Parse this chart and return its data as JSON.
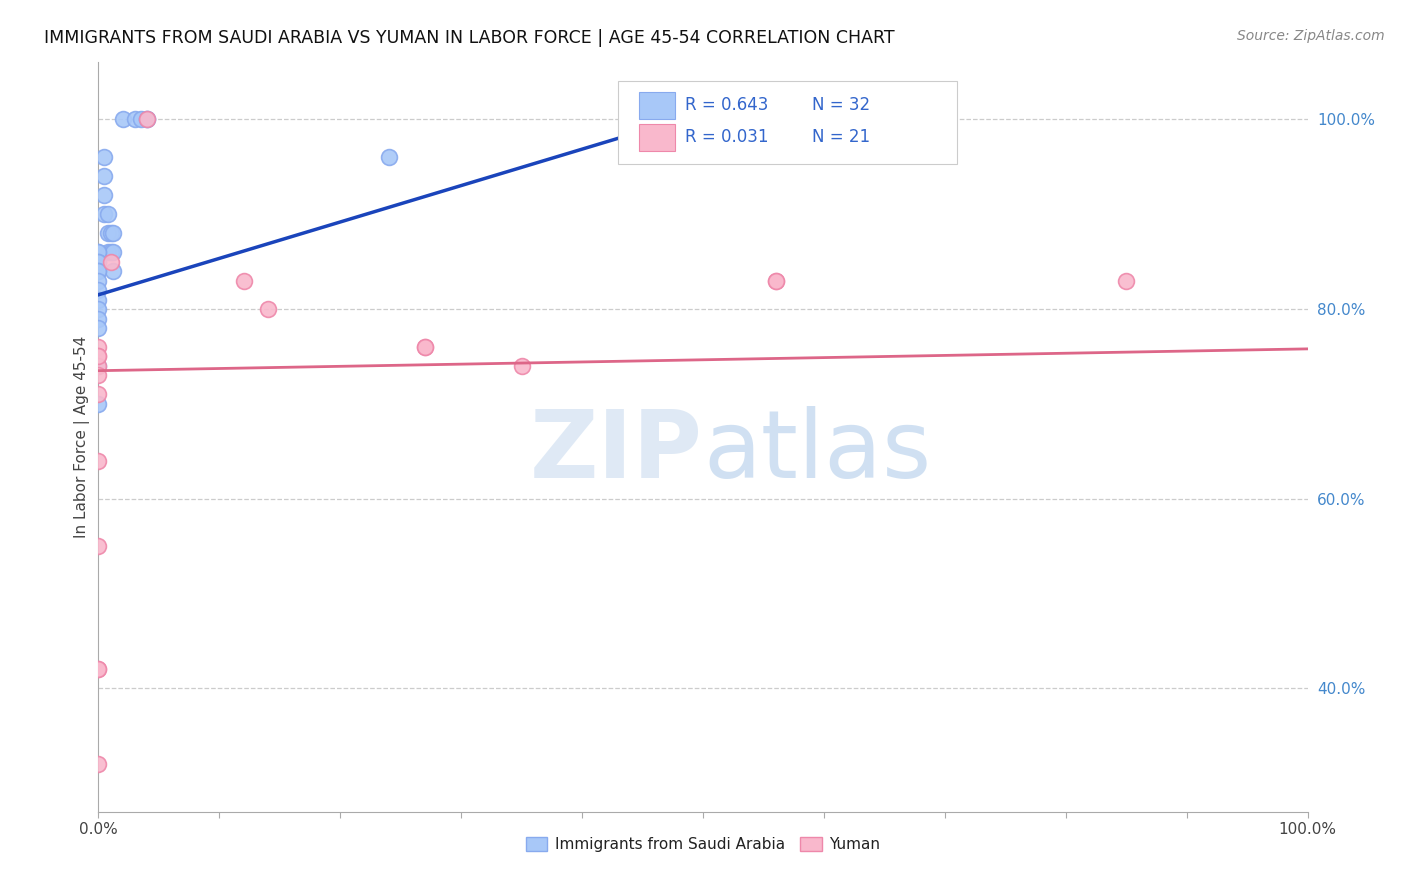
{
  "title": "IMMIGRANTS FROM SAUDI ARABIA VS YUMAN IN LABOR FORCE | AGE 45-54 CORRELATION CHART",
  "source": "Source: ZipAtlas.com",
  "ylabel": "In Labor Force | Age 45-54",
  "xlim": [
    0.0,
    1.0
  ],
  "ylim": [
    0.27,
    1.06
  ],
  "y_ticks_right": [
    0.4,
    0.6,
    0.8,
    1.0
  ],
  "y_tick_labels_right": [
    "40.0%",
    "60.0%",
    "80.0%",
    "100.0%"
  ],
  "r_blue": 0.643,
  "n_blue": 32,
  "r_pink": 0.031,
  "n_pink": 21,
  "blue_color": "#a8c8f8",
  "pink_color": "#f9b8cc",
  "blue_edge_color": "#88aaee",
  "pink_edge_color": "#ee88aa",
  "blue_line_color": "#1a44bb",
  "pink_line_color": "#dd6688",
  "legend_text_color": "#3366cc",
  "watermark_zip_color": "#c8dff5",
  "watermark_atlas_color": "#c8dff5",
  "bg_color": "#ffffff",
  "grid_color": "#cccccc",
  "blue_scatter_x": [
    0.02,
    0.03,
    0.035,
    0.04,
    0.04,
    0.005,
    0.005,
    0.005,
    0.005,
    0.008,
    0.008,
    0.008,
    0.01,
    0.01,
    0.012,
    0.012,
    0.012,
    0.0,
    0.0,
    0.0,
    0.0,
    0.0,
    0.0,
    0.0,
    0.0,
    0.0,
    0.0,
    0.0,
    0.0,
    0.0,
    0.24,
    0.0
  ],
  "blue_scatter_y": [
    1.0,
    1.0,
    1.0,
    1.0,
    1.0,
    0.96,
    0.94,
    0.92,
    0.9,
    0.9,
    0.88,
    0.86,
    0.88,
    0.86,
    0.88,
    0.86,
    0.84,
    0.86,
    0.86,
    0.85,
    0.85,
    0.84,
    0.84,
    0.83,
    0.82,
    0.81,
    0.8,
    0.79,
    0.78,
    0.74,
    0.96,
    0.7
  ],
  "pink_scatter_x": [
    0.04,
    0.01,
    0.12,
    0.14,
    0.27,
    0.56,
    0.56,
    0.27,
    0.0,
    0.0,
    0.0,
    0.0,
    0.0,
    0.0,
    0.0,
    0.0,
    0.0,
    0.0,
    0.35,
    0.0,
    0.85
  ],
  "pink_scatter_y": [
    1.0,
    0.85,
    0.83,
    0.8,
    0.76,
    0.83,
    0.83,
    0.76,
    0.76,
    0.75,
    0.74,
    0.73,
    0.71,
    0.64,
    0.55,
    0.42,
    0.42,
    0.75,
    0.74,
    0.32,
    0.83
  ],
  "blue_trend_x": [
    0.0,
    0.56
  ],
  "blue_trend_y": [
    0.815,
    1.03
  ],
  "pink_trend_x": [
    0.0,
    1.0
  ],
  "pink_trend_y": [
    0.735,
    0.758
  ],
  "scatter_size": 130
}
